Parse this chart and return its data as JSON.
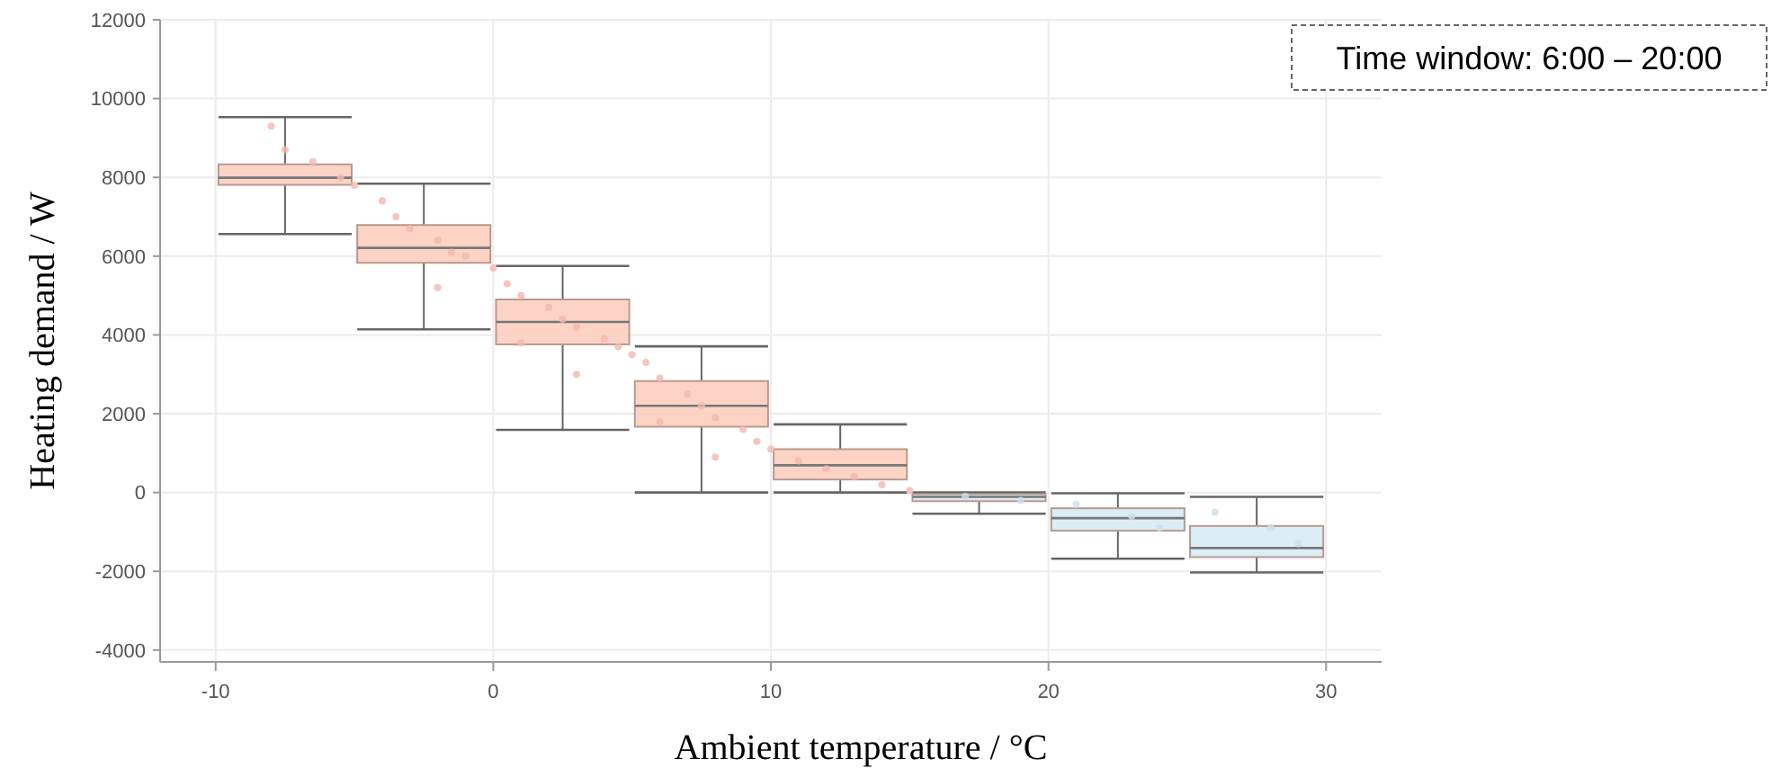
{
  "chart_data": {
    "type": "box",
    "xlabel": "Ambient temperature / °C",
    "ylabel": "Heating demand / W",
    "annotations": [
      "Time window: 6:00 – 20:00"
    ],
    "xlim": [
      -12,
      32
    ],
    "xticks": [
      -10,
      0,
      10,
      20,
      30
    ],
    "ylim": [
      -4300,
      12000
    ],
    "yticks": [
      -4000,
      -2000,
      0,
      2000,
      4000,
      6000,
      8000,
      10000,
      12000
    ],
    "grid": true,
    "series": [
      {
        "type": "scatter",
        "color": "#f4b8ae",
        "x": [
          -8,
          -7.5,
          -6.5,
          -5.5,
          -5,
          -4,
          -3.5,
          -3,
          -2,
          -1.5,
          -1,
          0,
          0.5,
          1,
          2,
          2.5,
          3,
          4,
          4.5,
          5,
          5.5,
          6,
          7,
          7.5,
          8,
          9,
          9.5,
          10,
          11,
          12,
          13,
          14,
          15,
          3,
          6,
          8,
          1,
          -2
        ],
        "values": [
          9300,
          8700,
          8400,
          8000,
          7800,
          7400,
          7000,
          6700,
          6400,
          6100,
          6000,
          5700,
          5300,
          5000,
          4700,
          4400,
          4200,
          3900,
          3700,
          3500,
          3300,
          2900,
          2500,
          2200,
          1900,
          1600,
          1300,
          1100,
          800,
          600,
          400,
          200,
          50,
          3000,
          1800,
          900,
          3800,
          5200
        ]
      },
      {
        "type": "scatter",
        "color": "#c9e0ec",
        "x": [
          17,
          19,
          21,
          23,
          24,
          26,
          28,
          29
        ],
        "values": [
          -100,
          -200,
          -300,
          -600,
          -900,
          -500,
          -900,
          -1300
        ]
      },
      {
        "color": "#fbcbbb",
        "x": [
          -7.5,
          -2.5,
          2.5,
          7.5,
          12.5
        ],
        "boxes": [
          {
            "low": 6560,
            "q1": 7810,
            "median": 7990,
            "q3": 8330,
            "high": 9530
          },
          {
            "low": 4140,
            "q1": 5830,
            "median": 6210,
            "q3": 6790,
            "high": 7840
          },
          {
            "low": 1590,
            "q1": 3760,
            "median": 4330,
            "q3": 4900,
            "high": 5750
          },
          {
            "low": 0,
            "q1": 1670,
            "median": 2200,
            "q3": 2830,
            "high": 3710
          },
          {
            "low": 0,
            "q1": 330,
            "median": 690,
            "q3": 1100,
            "high": 1730
          }
        ]
      },
      {
        "color": "#d5eaf3",
        "x": [
          17.5,
          22.5,
          27.5
        ],
        "boxes": [
          {
            "low": -540,
            "q1": -220,
            "median": -110,
            "q3": -40,
            "high": 0
          },
          {
            "low": -1680,
            "q1": -970,
            "median": -650,
            "q3": -400,
            "high": -20
          },
          {
            "low": -2030,
            "q1": -1640,
            "median": -1410,
            "q3": -850,
            "high": -110
          }
        ]
      }
    ]
  }
}
